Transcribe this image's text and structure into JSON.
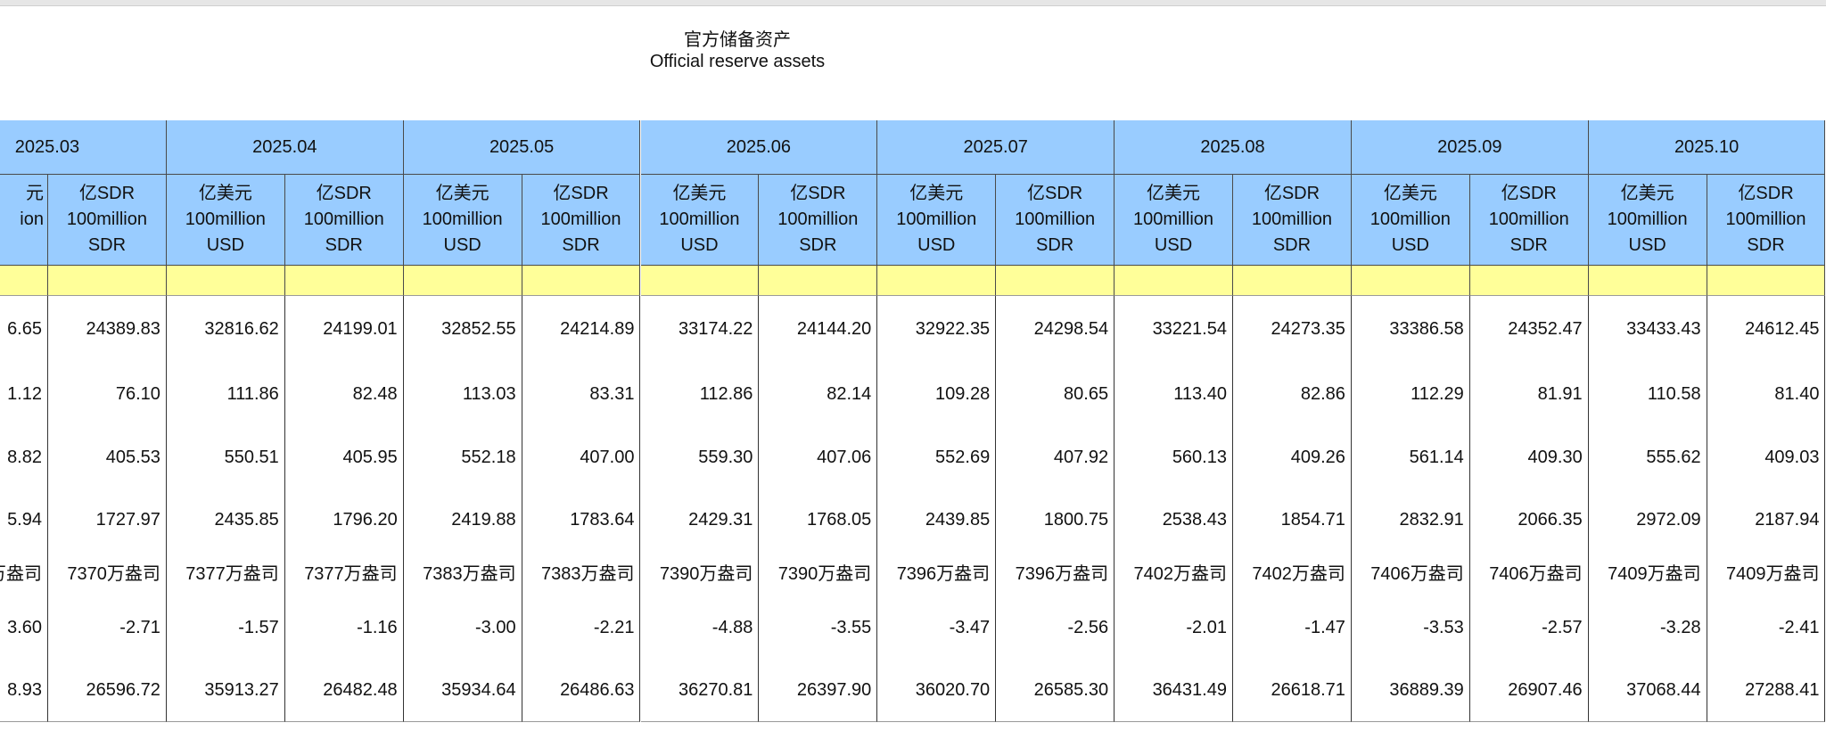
{
  "title": {
    "zh": "官方储备资产",
    "en": "Official reserve assets"
  },
  "months": [
    "2025.03",
    "2025.04",
    "2025.05",
    "2025.06",
    "2025.07",
    "2025.08",
    "2025.09",
    "2025.10"
  ],
  "partial_header": [
    "元",
    "ion"
  ],
  "units": {
    "usd": [
      "亿美元",
      "100million",
      "USD"
    ],
    "sdr": [
      "亿SDR",
      "100million",
      "SDR"
    ]
  },
  "rows": [
    [
      "6.65",
      "24389.83",
      "32816.62",
      "24199.01",
      "32852.55",
      "24214.89",
      "33174.22",
      "24144.20",
      "32922.35",
      "24298.54",
      "33221.54",
      "24273.35",
      "33386.58",
      "24352.47",
      "33433.43",
      "24612.45"
    ],
    [
      "1.12",
      "76.10",
      "111.86",
      "82.48",
      "113.03",
      "83.31",
      "112.86",
      "82.14",
      "109.28",
      "80.65",
      "113.40",
      "82.86",
      "112.29",
      "81.91",
      "110.58",
      "81.40"
    ],
    [
      "8.82",
      "405.53",
      "550.51",
      "405.95",
      "552.18",
      "407.00",
      "559.30",
      "407.06",
      "552.69",
      "407.92",
      "560.13",
      "409.26",
      "561.14",
      "409.30",
      "555.62",
      "409.03"
    ],
    [
      "5.94",
      "1727.97",
      "2435.85",
      "1796.20",
      "2419.88",
      "1783.64",
      "2429.31",
      "1768.05",
      "2439.85",
      "1800.75",
      "2538.43",
      "1854.71",
      "2832.91",
      "2066.35",
      "2972.09",
      "2187.94"
    ],
    [
      "万盎司",
      "7370万盎司",
      "7377万盎司",
      "7377万盎司",
      "7383万盎司",
      "7383万盎司",
      "7390万盎司",
      "7390万盎司",
      "7396万盎司",
      "7396万盎司",
      "7402万盎司",
      "7402万盎司",
      "7406万盎司",
      "7406万盎司",
      "7409万盎司",
      "7409万盎司"
    ],
    [
      "3.60",
      "-2.71",
      "-1.57",
      "-1.16",
      "-3.00",
      "-2.21",
      "-4.88",
      "-3.55",
      "-3.47",
      "-2.56",
      "-2.01",
      "-1.47",
      "-3.53",
      "-2.57",
      "-3.28",
      "-2.41"
    ],
    [
      "8.93",
      "26596.72",
      "35913.27",
      "26482.48",
      "35934.64",
      "26486.63",
      "36270.81",
      "26397.90",
      "36020.70",
      "26585.30",
      "36431.49",
      "26618.71",
      "36889.39",
      "26907.46",
      "37068.44",
      "27288.41"
    ]
  ]
}
